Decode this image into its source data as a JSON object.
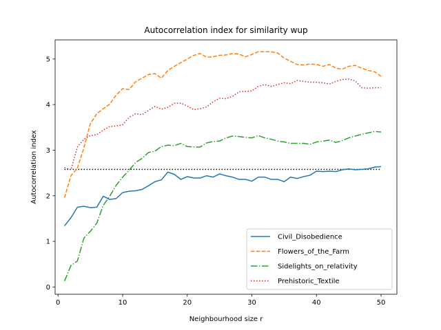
{
  "chart_data": {
    "type": "line",
    "title": "Autocorrelation index for similarity wup",
    "xlabel": "Neighbourhood size r",
    "ylabel": "Autocorrelation index",
    "xlim": [
      -0.45,
      52.45
    ],
    "ylim": [
      -0.16,
      5.42
    ],
    "xticks": [
      0,
      10,
      20,
      30,
      40,
      50
    ],
    "yticks": [
      0,
      1,
      2,
      3,
      4,
      5
    ],
    "legend_position": "lower-right",
    "x": [
      1,
      2,
      3,
      4,
      5,
      6,
      7,
      8,
      9,
      10,
      11,
      12,
      13,
      14,
      15,
      16,
      17,
      18,
      19,
      20,
      21,
      22,
      23,
      24,
      25,
      26,
      27,
      28,
      29,
      30,
      31,
      32,
      33,
      34,
      35,
      36,
      37,
      38,
      39,
      40,
      41,
      42,
      43,
      44,
      45,
      46,
      47,
      48,
      49,
      50
    ],
    "reference_line": {
      "name": "baseline",
      "value": 2.58,
      "color": "#000000",
      "dash": "dotted"
    },
    "series": [
      {
        "name": "Civil_Disobedience",
        "color": "#1f77b4",
        "dash": "solid",
        "values": [
          1.34,
          1.52,
          1.75,
          1.77,
          1.74,
          1.75,
          1.99,
          1.92,
          1.94,
          2.07,
          2.1,
          2.11,
          2.14,
          2.22,
          2.31,
          2.35,
          2.52,
          2.47,
          2.36,
          2.42,
          2.39,
          2.39,
          2.44,
          2.41,
          2.48,
          2.44,
          2.41,
          2.36,
          2.36,
          2.32,
          2.41,
          2.41,
          2.36,
          2.36,
          2.31,
          2.41,
          2.38,
          2.42,
          2.45,
          2.54,
          2.53,
          2.54,
          2.53,
          2.57,
          2.59,
          2.57,
          2.58,
          2.59,
          2.63,
          2.64
        ]
      },
      {
        "name": "Flowers_of_the_Farm",
        "color": "#ff7f0e",
        "dash": "dashed",
        "values": [
          1.96,
          2.44,
          2.61,
          3.05,
          3.58,
          3.8,
          3.91,
          4.01,
          4.21,
          4.35,
          4.33,
          4.5,
          4.58,
          4.66,
          4.68,
          4.58,
          4.75,
          4.84,
          4.92,
          5.0,
          5.08,
          5.12,
          5.04,
          5.05,
          5.08,
          5.09,
          5.12,
          5.11,
          5.05,
          5.1,
          5.16,
          5.16,
          5.16,
          5.13,
          5.02,
          4.95,
          4.88,
          4.87,
          4.89,
          4.88,
          4.84,
          4.88,
          4.8,
          4.78,
          4.84,
          4.86,
          4.8,
          4.75,
          4.72,
          4.62
        ]
      },
      {
        "name": "Sidelights_on_relativity",
        "color": "#2ca02c",
        "dash": "dashdot",
        "values": [
          0.13,
          0.47,
          0.57,
          1.07,
          1.22,
          1.4,
          1.79,
          1.99,
          2.23,
          2.41,
          2.56,
          2.73,
          2.82,
          2.95,
          2.98,
          3.08,
          3.11,
          3.1,
          3.15,
          3.08,
          3.07,
          3.07,
          3.16,
          3.19,
          3.2,
          3.27,
          3.31,
          3.3,
          3.28,
          3.27,
          3.32,
          3.27,
          3.24,
          3.2,
          3.18,
          3.15,
          3.15,
          3.15,
          3.13,
          3.18,
          3.2,
          3.22,
          3.17,
          3.21,
          3.27,
          3.31,
          3.35,
          3.38,
          3.41,
          3.4
        ]
      },
      {
        "name": "Prehistoric_Textile",
        "color": "#d62728",
        "dash": "dotted",
        "values": [
          2.62,
          2.57,
          3.07,
          3.24,
          3.32,
          3.34,
          3.44,
          3.52,
          3.53,
          3.56,
          3.72,
          3.8,
          3.78,
          3.87,
          3.96,
          3.9,
          3.94,
          4.03,
          4.03,
          3.97,
          3.89,
          3.91,
          3.95,
          4.06,
          4.14,
          4.13,
          4.18,
          4.28,
          4.29,
          4.3,
          4.4,
          4.44,
          4.4,
          4.44,
          4.48,
          4.46,
          4.53,
          4.51,
          4.49,
          4.49,
          4.48,
          4.45,
          4.51,
          4.55,
          4.56,
          4.52,
          4.37,
          4.36,
          4.37,
          4.37
        ]
      }
    ]
  }
}
